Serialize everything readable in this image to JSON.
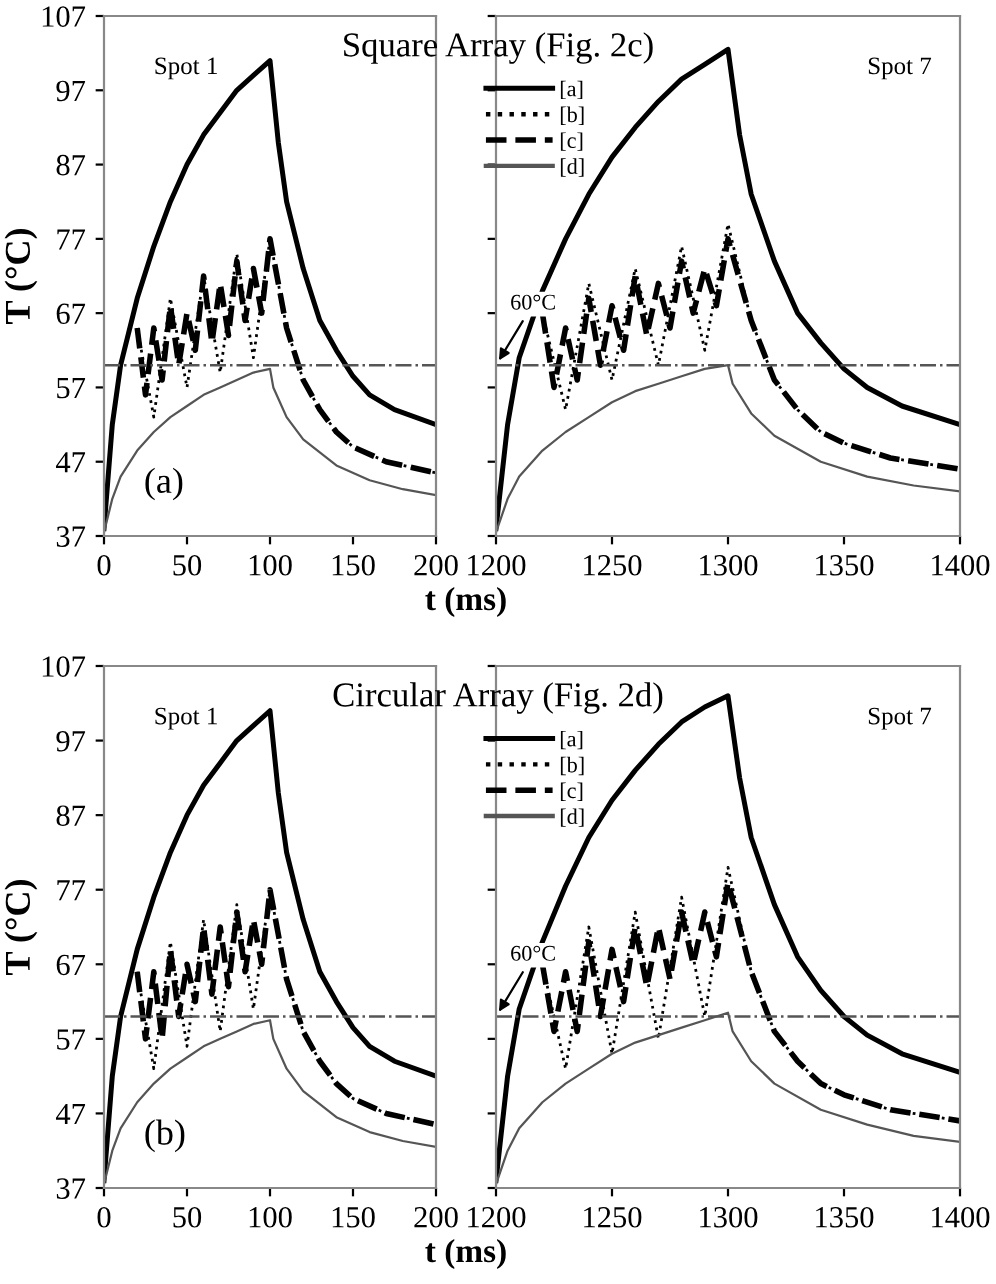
{
  "chart_data": [
    {
      "type": "line",
      "title": "Square Array (Fig. 2c)",
      "xlabel": "t (ms)",
      "ylabel": "T (°C)",
      "xlim": [
        0,
        200
      ],
      "xticks": [
        0,
        50,
        100,
        150,
        200
      ],
      "ylim": [
        37,
        107
      ],
      "yticks": [
        37,
        47,
        57,
        67,
        77,
        87,
        97,
        107
      ],
      "grid": false,
      "annotations": [
        "Spot 1",
        "(a)"
      ],
      "ref_lines": [
        {
          "axis": "y",
          "value": 60,
          "line_style": "dashdot",
          "color": "#555555"
        }
      ],
      "series": [
        {
          "color": "#000000",
          "line_style": "solid",
          "x": [
            0,
            5,
            10,
            20,
            30,
            40,
            50,
            60,
            70,
            80,
            90,
            100,
            105,
            110,
            120,
            130,
            140,
            150,
            160,
            175,
            200
          ],
          "values": [
            38,
            52,
            60,
            69,
            76,
            82,
            87,
            91,
            94,
            97,
            99,
            101,
            90,
            82,
            73,
            66,
            62,
            58.5,
            56,
            54,
            52
          ]
        },
        {
          "color": "#000000",
          "line_style": "dotted",
          "x": [
            20,
            30,
            40,
            50,
            60,
            70,
            80,
            90,
            100,
            110,
            120,
            130,
            140,
            150,
            170,
            200
          ],
          "values": [
            65,
            53,
            69,
            57,
            72,
            59,
            75,
            61,
            77,
            65,
            58,
            54,
            51,
            49,
            47,
            45.5
          ]
        },
        {
          "color": "#000000",
          "line_style": "dashed",
          "x": [
            20,
            25,
            30,
            35,
            40,
            45,
            50,
            55,
            60,
            65,
            70,
            75,
            80,
            85,
            90,
            95,
            100,
            110,
            120,
            130,
            140,
            150,
            170,
            200
          ],
          "values": [
            65,
            56,
            65,
            58,
            68,
            60,
            67,
            62,
            72,
            63,
            71,
            64,
            74,
            66,
            73,
            67,
            77,
            65,
            58,
            54,
            51,
            49,
            47,
            45.5
          ]
        },
        {
          "color": "#555555",
          "line_style": "solid",
          "x": [
            0,
            5,
            10,
            20,
            30,
            40,
            50,
            60,
            70,
            80,
            90,
            100,
            102,
            110,
            120,
            140,
            160,
            180,
            200
          ],
          "values": [
            37.5,
            42,
            45,
            48.5,
            51,
            53,
            54.5,
            56,
            57,
            58,
            59,
            59.5,
            57,
            53,
            50,
            46.5,
            44.5,
            43.3,
            42.5
          ]
        }
      ]
    },
    {
      "type": "line",
      "xlim": [
        1200,
        1400
      ],
      "xticks": [
        1200,
        1250,
        1300,
        1350,
        1400
      ],
      "ylim": [
        37,
        107
      ],
      "yticks": [
        37,
        47,
        57,
        67,
        77,
        87,
        97,
        107
      ],
      "tick_labels": "x",
      "grid": false,
      "legend": "top left",
      "annotations": [
        "Spot 7"
      ],
      "ref_lines": [
        {
          "axis": "y",
          "value": 60,
          "label": "60°C",
          "line_style": "dashdot",
          "color": "#555555"
        }
      ],
      "series": [
        {
          "name": "[a]",
          "color": "#000000",
          "line_style": "solid",
          "x": [
            1200,
            1205,
            1210,
            1220,
            1230,
            1240,
            1250,
            1260,
            1270,
            1280,
            1290,
            1300,
            1305,
            1310,
            1320,
            1330,
            1340,
            1350,
            1360,
            1375,
            1400
          ],
          "values": [
            38,
            52,
            61,
            70,
            77,
            83,
            88,
            92,
            95.5,
            98.5,
            100.5,
            102.5,
            91,
            83,
            74,
            67,
            63,
            59.5,
            57,
            54.5,
            52
          ]
        },
        {
          "name": "[b]",
          "color": "#000000",
          "line_style": "dotted",
          "x": [
            1220,
            1230,
            1240,
            1250,
            1260,
            1270,
            1280,
            1290,
            1300,
            1310,
            1320,
            1330,
            1340,
            1350,
            1370,
            1400
          ],
          "values": [
            67,
            54,
            71,
            58,
            73,
            60,
            76,
            62,
            79,
            66,
            58,
            54,
            51,
            49.5,
            47.5,
            46
          ]
        },
        {
          "name": "[c]",
          "color": "#000000",
          "line_style": "dashed",
          "x": [
            1220,
            1225,
            1230,
            1235,
            1240,
            1245,
            1250,
            1255,
            1260,
            1265,
            1270,
            1275,
            1280,
            1285,
            1290,
            1295,
            1300,
            1310,
            1320,
            1330,
            1340,
            1350,
            1370,
            1400
          ],
          "values": [
            67,
            57,
            65,
            58,
            69,
            60,
            68,
            62,
            72,
            64,
            71,
            65,
            74,
            67,
            73,
            68,
            77,
            66,
            58,
            54,
            51,
            49.5,
            47.5,
            46
          ]
        },
        {
          "name": "[d]",
          "color": "#555555",
          "line_style": "solid",
          "x": [
            1200,
            1205,
            1210,
            1220,
            1230,
            1240,
            1250,
            1260,
            1270,
            1280,
            1290,
            1300,
            1302,
            1310,
            1320,
            1340,
            1360,
            1380,
            1400
          ],
          "values": [
            37.5,
            42,
            45,
            48.5,
            51,
            53,
            55,
            56.5,
            57.5,
            58.5,
            59.5,
            60,
            57.5,
            53.5,
            50.5,
            47,
            45,
            43.8,
            43
          ]
        }
      ]
    },
    {
      "type": "line",
      "title": "Circular Array (Fig. 2d)",
      "xlabel": "t (ms)",
      "ylabel": "T (°C)",
      "xlim": [
        0,
        200
      ],
      "xticks": [
        0,
        50,
        100,
        150,
        200
      ],
      "ylim": [
        37,
        107
      ],
      "yticks": [
        37,
        47,
        57,
        67,
        77,
        87,
        97,
        107
      ],
      "grid": false,
      "annotations": [
        "Spot 1",
        "(b)"
      ],
      "ref_lines": [
        {
          "axis": "y",
          "value": 60,
          "line_style": "dashdot",
          "color": "#555555"
        }
      ],
      "series": [
        {
          "color": "#000000",
          "line_style": "solid",
          "x": [
            0,
            5,
            10,
            20,
            30,
            40,
            50,
            60,
            70,
            80,
            90,
            100,
            105,
            110,
            120,
            130,
            140,
            150,
            160,
            175,
            200
          ],
          "values": [
            38,
            52,
            60,
            69,
            76,
            82,
            87,
            91,
            94,
            97,
            99,
            101,
            90,
            82,
            73,
            66,
            62,
            58.5,
            56,
            54,
            52
          ]
        },
        {
          "color": "#000000",
          "line_style": "dotted",
          "x": [
            20,
            30,
            40,
            50,
            60,
            70,
            80,
            90,
            100,
            110,
            120,
            130,
            140,
            150,
            170,
            200
          ],
          "values": [
            66,
            53,
            70,
            56,
            73,
            58,
            75,
            61,
            77,
            65,
            58,
            54,
            51,
            49,
            47,
            45.5
          ]
        },
        {
          "color": "#000000",
          "line_style": "dashed",
          "x": [
            20,
            25,
            30,
            35,
            40,
            45,
            50,
            55,
            60,
            65,
            70,
            75,
            80,
            85,
            90,
            95,
            100,
            110,
            120,
            130,
            140,
            150,
            170,
            200
          ],
          "values": [
            66,
            57,
            66,
            57,
            69,
            60,
            67,
            62,
            72,
            63,
            72,
            64,
            74,
            66,
            73,
            67,
            77,
            65,
            58,
            54,
            51,
            49,
            47,
            45.5
          ]
        },
        {
          "color": "#555555",
          "line_style": "solid",
          "x": [
            0,
            5,
            10,
            20,
            30,
            40,
            50,
            60,
            70,
            80,
            90,
            100,
            102,
            110,
            120,
            140,
            160,
            180,
            200
          ],
          "values": [
            37.5,
            42,
            45,
            48.5,
            51,
            53,
            54.5,
            56,
            57,
            58,
            59,
            59.5,
            57,
            53,
            50,
            46.5,
            44.5,
            43.3,
            42.5
          ]
        }
      ]
    },
    {
      "type": "line",
      "xlim": [
        1200,
        1400
      ],
      "xticks": [
        1200,
        1250,
        1300,
        1350,
        1400
      ],
      "ylim": [
        37,
        107
      ],
      "yticks": [
        37,
        47,
        57,
        67,
        77,
        87,
        97,
        107
      ],
      "tick_labels": "x",
      "grid": false,
      "legend": "top left",
      "annotations": [
        "Spot 7"
      ],
      "ref_lines": [
        {
          "axis": "y",
          "value": 60,
          "label": "60°C",
          "line_style": "dashdot",
          "color": "#555555"
        }
      ],
      "series": [
        {
          "name": "[a]",
          "color": "#000000",
          "line_style": "solid",
          "x": [
            1200,
            1205,
            1210,
            1220,
            1230,
            1240,
            1250,
            1260,
            1270,
            1280,
            1290,
            1300,
            1305,
            1310,
            1320,
            1330,
            1340,
            1350,
            1360,
            1375,
            1400
          ],
          "values": [
            38,
            52,
            61,
            70,
            77.5,
            84,
            89,
            93,
            96.5,
            99.5,
            101.5,
            103,
            92,
            84,
            75,
            68,
            63.5,
            60,
            57.5,
            55,
            52.5
          ]
        },
        {
          "name": "[b]",
          "color": "#000000",
          "line_style": "dotted",
          "x": [
            1220,
            1230,
            1240,
            1250,
            1260,
            1270,
            1280,
            1290,
            1300,
            1310,
            1320,
            1330,
            1340,
            1350,
            1370,
            1400
          ],
          "values": [
            67,
            53,
            72,
            55,
            74,
            57,
            76,
            60,
            80,
            66,
            58,
            54,
            51,
            49.5,
            47.5,
            46
          ]
        },
        {
          "name": "[c]",
          "color": "#000000",
          "line_style": "dashed",
          "x": [
            1220,
            1225,
            1230,
            1235,
            1240,
            1245,
            1250,
            1255,
            1260,
            1265,
            1270,
            1275,
            1280,
            1285,
            1290,
            1295,
            1300,
            1310,
            1320,
            1330,
            1340,
            1350,
            1370,
            1400
          ],
          "values": [
            67,
            58,
            66,
            58,
            70,
            60,
            69,
            62,
            72,
            64,
            72,
            65,
            74,
            67,
            74,
            68,
            78,
            66,
            58,
            54,
            51,
            49.5,
            47.5,
            46
          ]
        },
        {
          "name": "[d]",
          "color": "#555555",
          "line_style": "solid",
          "x": [
            1200,
            1205,
            1210,
            1220,
            1230,
            1240,
            1250,
            1260,
            1270,
            1280,
            1290,
            1300,
            1302,
            1310,
            1320,
            1340,
            1360,
            1380,
            1400
          ],
          "values": [
            37.5,
            42,
            45,
            48.5,
            51,
            53,
            55,
            56.5,
            57.5,
            58.5,
            59.5,
            60.5,
            58,
            54,
            51,
            47.5,
            45.5,
            44,
            43.2
          ]
        }
      ]
    }
  ]
}
